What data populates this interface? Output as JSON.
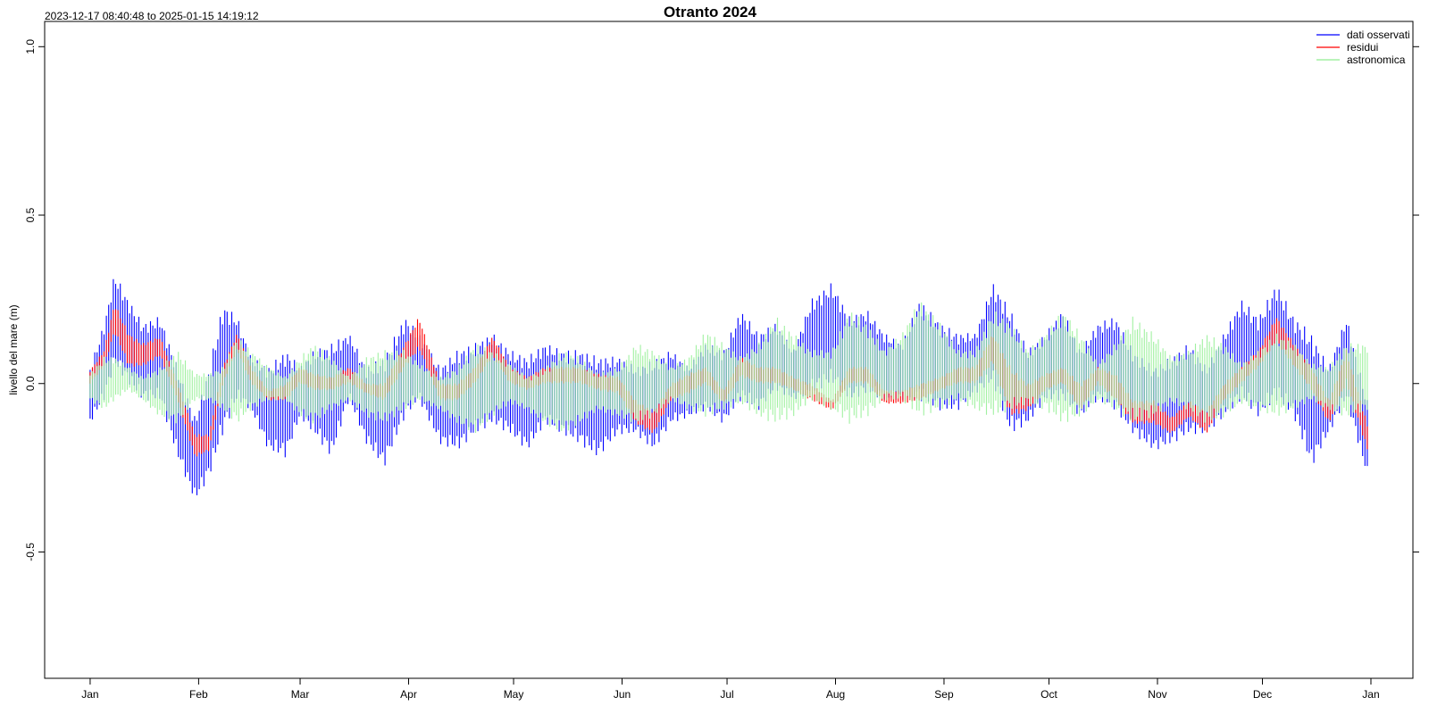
{
  "chart_data": {
    "type": "line",
    "title": "Otranto 2024",
    "subtitle": "2023-12-17 08:40:48 to 2025-01-15 14:19:12",
    "xlabel": "",
    "ylabel": "livello del mare (m)",
    "xlim": [
      "2023-12-19",
      "2025-01-13"
    ],
    "ylim": [
      -0.875,
      1.075
    ],
    "y_ticks": [
      1.0,
      0.5,
      0.0,
      -0.5
    ],
    "y_tick_labels": [
      "1.0",
      "0.5",
      "0.0",
      "-0.5"
    ],
    "x_ticks": [
      "2024-01-01",
      "2024-02-01",
      "2024-03-01",
      "2024-04-01",
      "2024-05-01",
      "2024-06-01",
      "2024-07-01",
      "2024-08-01",
      "2024-09-01",
      "2024-10-01",
      "2024-11-01",
      "2024-12-01",
      "2025-01-01"
    ],
    "x_tick_labels": [
      "Jan",
      "Feb",
      "Mar",
      "Apr",
      "May",
      "Jun",
      "Jul",
      "Aug",
      "Sep",
      "Oct",
      "Nov",
      "Dec",
      "Jan"
    ],
    "legend_position": "top-right",
    "grid": false,
    "series": [
      {
        "name": "dati osservati",
        "color": "#0000ff",
        "style": "band",
        "x": [
          "2024-01-01",
          "2024-01-05",
          "2024-01-08",
          "2024-01-12",
          "2024-01-16",
          "2024-01-21",
          "2024-01-26",
          "2024-01-31",
          "2024-02-04",
          "2024-02-08",
          "2024-02-12",
          "2024-02-16",
          "2024-02-21",
          "2024-02-26",
          "2024-03-01",
          "2024-03-05",
          "2024-03-10",
          "2024-03-15",
          "2024-03-20",
          "2024-03-25",
          "2024-03-31",
          "2024-04-04",
          "2024-04-10",
          "2024-04-15",
          "2024-04-20",
          "2024-04-25",
          "2024-04-30",
          "2024-05-05",
          "2024-05-10",
          "2024-05-15",
          "2024-05-20",
          "2024-05-25",
          "2024-05-31",
          "2024-06-05",
          "2024-06-10",
          "2024-06-15",
          "2024-06-20",
          "2024-06-25",
          "2024-06-30",
          "2024-07-05",
          "2024-07-10",
          "2024-07-15",
          "2024-07-20",
          "2024-07-25",
          "2024-07-31",
          "2024-08-05",
          "2024-08-10",
          "2024-08-15",
          "2024-08-20",
          "2024-08-25",
          "2024-08-31",
          "2024-09-05",
          "2024-09-10",
          "2024-09-15",
          "2024-09-20",
          "2024-09-25",
          "2024-09-30",
          "2024-10-05",
          "2024-10-10",
          "2024-10-15",
          "2024-10-20",
          "2024-10-25",
          "2024-10-31",
          "2024-11-05",
          "2024-11-10",
          "2024-11-15",
          "2024-11-20",
          "2024-11-25",
          "2024-11-30",
          "2024-12-05",
          "2024-12-10",
          "2024-12-15",
          "2024-12-20",
          "2024-12-25",
          "2024-12-31"
        ],
        "y_max": [
          0.05,
          0.18,
          0.33,
          0.25,
          0.18,
          0.2,
          0.05,
          -0.1,
          0.05,
          0.24,
          0.2,
          0.08,
          0.05,
          0.1,
          0.05,
          0.1,
          0.12,
          0.15,
          0.05,
          0.08,
          0.2,
          0.15,
          0.05,
          0.1,
          0.12,
          0.15,
          0.1,
          0.08,
          0.12,
          0.1,
          0.1,
          0.08,
          0.08,
          0.05,
          0.07,
          0.1,
          0.05,
          0.12,
          0.1,
          0.22,
          0.15,
          0.18,
          0.1,
          0.25,
          0.3,
          0.2,
          0.22,
          0.15,
          0.12,
          0.25,
          0.18,
          0.15,
          0.15,
          0.3,
          0.22,
          0.1,
          0.15,
          0.22,
          0.1,
          0.18,
          0.2,
          0.1,
          0.05,
          0.08,
          0.12,
          0.05,
          0.15,
          0.25,
          0.2,
          0.3,
          0.2,
          0.15,
          0.05,
          0.2,
          -0.05
        ],
        "y_min": [
          -0.12,
          -0.05,
          0.05,
          0.0,
          -0.05,
          -0.05,
          -0.22,
          -0.35,
          -0.28,
          -0.15,
          -0.05,
          -0.08,
          -0.2,
          -0.22,
          -0.1,
          -0.15,
          -0.22,
          -0.05,
          -0.18,
          -0.25,
          -0.1,
          -0.05,
          -0.18,
          -0.2,
          -0.15,
          -0.12,
          -0.15,
          -0.2,
          -0.12,
          -0.15,
          -0.18,
          -0.22,
          -0.15,
          -0.15,
          -0.2,
          -0.12,
          -0.1,
          -0.08,
          -0.12,
          -0.05,
          -0.08,
          -0.02,
          -0.05,
          -0.03,
          0.0,
          -0.05,
          -0.03,
          -0.05,
          -0.05,
          -0.05,
          -0.08,
          -0.08,
          -0.03,
          0.0,
          -0.15,
          -0.12,
          -0.05,
          -0.05,
          -0.1,
          -0.05,
          -0.08,
          -0.15,
          -0.2,
          -0.18,
          -0.15,
          -0.15,
          -0.1,
          -0.05,
          -0.1,
          -0.05,
          -0.1,
          -0.25,
          -0.15,
          -0.05,
          -0.28
        ]
      },
      {
        "name": "residui",
        "color": "#ff0000",
        "style": "band",
        "x": [
          "2024-01-01",
          "2024-01-05",
          "2024-01-08",
          "2024-01-12",
          "2024-01-16",
          "2024-01-21",
          "2024-01-26",
          "2024-01-31",
          "2024-02-04",
          "2024-02-08",
          "2024-02-12",
          "2024-02-16",
          "2024-02-21",
          "2024-02-26",
          "2024-03-01",
          "2024-03-05",
          "2024-03-10",
          "2024-03-15",
          "2024-03-20",
          "2024-03-25",
          "2024-03-31",
          "2024-04-04",
          "2024-04-10",
          "2024-04-15",
          "2024-04-20",
          "2024-04-25",
          "2024-04-30",
          "2024-05-05",
          "2024-05-10",
          "2024-05-15",
          "2024-05-20",
          "2024-05-25",
          "2024-05-31",
          "2024-06-05",
          "2024-06-10",
          "2024-06-15",
          "2024-06-20",
          "2024-06-25",
          "2024-06-30",
          "2024-07-05",
          "2024-07-10",
          "2024-07-15",
          "2024-07-20",
          "2024-07-25",
          "2024-07-31",
          "2024-08-05",
          "2024-08-10",
          "2024-08-15",
          "2024-08-20",
          "2024-08-25",
          "2024-08-31",
          "2024-09-05",
          "2024-09-10",
          "2024-09-15",
          "2024-09-20",
          "2024-09-25",
          "2024-09-30",
          "2024-10-05",
          "2024-10-10",
          "2024-10-15",
          "2024-10-20",
          "2024-10-25",
          "2024-10-31",
          "2024-11-05",
          "2024-11-10",
          "2024-11-15",
          "2024-11-20",
          "2024-11-25",
          "2024-11-30",
          "2024-12-05",
          "2024-12-10",
          "2024-12-15",
          "2024-12-20",
          "2024-12-25",
          "2024-12-31"
        ],
        "y_max": [
          0.04,
          0.1,
          0.24,
          0.15,
          0.12,
          0.14,
          0.0,
          -0.15,
          -0.15,
          0.05,
          0.15,
          0.05,
          -0.02,
          0.0,
          0.05,
          0.03,
          0.02,
          0.05,
          0.0,
          0.0,
          0.12,
          0.2,
          0.0,
          0.0,
          0.05,
          0.14,
          0.05,
          0.02,
          0.05,
          0.05,
          0.05,
          0.03,
          0.02,
          -0.05,
          -0.08,
          0.0,
          0.03,
          0.05,
          -0.02,
          0.08,
          0.05,
          0.05,
          0.02,
          0.0,
          -0.05,
          0.05,
          0.05,
          -0.02,
          -0.02,
          0.0,
          0.02,
          0.05,
          0.05,
          0.15,
          0.05,
          0.0,
          0.03,
          0.05,
          0.0,
          0.05,
          0.03,
          -0.05,
          -0.05,
          -0.1,
          -0.05,
          -0.08,
          0.0,
          0.05,
          0.1,
          0.2,
          0.12,
          0.05,
          -0.05,
          0.1,
          -0.12
        ],
        "y_min": [
          0.0,
          0.05,
          0.15,
          0.05,
          0.05,
          0.08,
          -0.05,
          -0.22,
          -0.2,
          0.0,
          0.1,
          0.0,
          -0.05,
          -0.05,
          0.0,
          -0.02,
          -0.02,
          0.0,
          -0.03,
          -0.05,
          0.05,
          0.1,
          -0.05,
          -0.05,
          0.0,
          0.08,
          0.0,
          -0.02,
          0.0,
          0.0,
          0.0,
          -0.02,
          -0.03,
          -0.12,
          -0.15,
          -0.05,
          -0.03,
          0.0,
          -0.06,
          0.02,
          0.0,
          0.0,
          -0.02,
          -0.05,
          -0.08,
          0.0,
          0.0,
          -0.06,
          -0.06,
          -0.05,
          -0.02,
          0.0,
          0.0,
          0.06,
          -0.1,
          -0.08,
          -0.02,
          0.0,
          -0.08,
          0.0,
          -0.05,
          -0.12,
          -0.12,
          -0.15,
          -0.1,
          -0.15,
          -0.05,
          0.0,
          0.05,
          0.12,
          0.05,
          -0.02,
          -0.12,
          0.0,
          -0.2
        ]
      },
      {
        "name": "astronomica",
        "color": "#90ee90",
        "style": "band",
        "x": [
          "2024-01-01",
          "2024-01-05",
          "2024-01-08",
          "2024-01-12",
          "2024-01-16",
          "2024-01-21",
          "2024-01-26",
          "2024-01-31",
          "2024-02-04",
          "2024-02-08",
          "2024-02-12",
          "2024-02-16",
          "2024-02-21",
          "2024-02-26",
          "2024-03-01",
          "2024-03-05",
          "2024-03-10",
          "2024-03-15",
          "2024-03-20",
          "2024-03-25",
          "2024-03-31",
          "2024-04-04",
          "2024-04-10",
          "2024-04-15",
          "2024-04-20",
          "2024-04-25",
          "2024-04-30",
          "2024-05-05",
          "2024-05-10",
          "2024-05-15",
          "2024-05-20",
          "2024-05-25",
          "2024-05-31",
          "2024-06-05",
          "2024-06-10",
          "2024-06-15",
          "2024-06-20",
          "2024-06-25",
          "2024-06-30",
          "2024-07-05",
          "2024-07-10",
          "2024-07-15",
          "2024-07-20",
          "2024-07-25",
          "2024-07-31",
          "2024-08-05",
          "2024-08-10",
          "2024-08-15",
          "2024-08-20",
          "2024-08-25",
          "2024-08-31",
          "2024-09-05",
          "2024-09-10",
          "2024-09-15",
          "2024-09-20",
          "2024-09-25",
          "2024-09-30",
          "2024-10-05",
          "2024-10-10",
          "2024-10-15",
          "2024-10-20",
          "2024-10-25",
          "2024-10-31",
          "2024-11-05",
          "2024-11-10",
          "2024-11-15",
          "2024-11-20",
          "2024-11-25",
          "2024-11-30",
          "2024-12-05",
          "2024-12-10",
          "2024-12-15",
          "2024-12-20",
          "2024-12-25",
          "2024-12-31"
        ],
        "y_max": [
          0.03,
          0.08,
          0.08,
          0.05,
          0.02,
          0.05,
          0.1,
          0.03,
          0.03,
          0.05,
          0.14,
          0.1,
          0.05,
          0.02,
          0.08,
          0.12,
          0.08,
          0.02,
          0.08,
          0.1,
          0.1,
          0.06,
          0.02,
          0.05,
          0.12,
          0.1,
          0.06,
          0.02,
          0.05,
          0.1,
          0.08,
          0.03,
          0.05,
          0.12,
          0.1,
          0.05,
          0.08,
          0.16,
          0.12,
          0.08,
          0.12,
          0.2,
          0.15,
          0.1,
          0.1,
          0.22,
          0.18,
          0.1,
          0.15,
          0.25,
          0.18,
          0.1,
          0.1,
          0.22,
          0.18,
          0.1,
          0.15,
          0.22,
          0.15,
          0.06,
          0.12,
          0.2,
          0.15,
          0.08,
          0.1,
          0.15,
          0.12,
          0.06,
          0.1,
          0.15,
          0.12,
          0.06,
          0.05,
          0.12,
          0.12
        ],
        "y_min": [
          -0.05,
          -0.08,
          -0.05,
          -0.02,
          -0.05,
          -0.1,
          -0.12,
          -0.05,
          -0.05,
          -0.08,
          -0.12,
          -0.08,
          -0.05,
          -0.05,
          -0.1,
          -0.12,
          -0.08,
          -0.05,
          -0.1,
          -0.12,
          -0.08,
          -0.05,
          -0.08,
          -0.12,
          -0.15,
          -0.1,
          -0.06,
          -0.08,
          -0.12,
          -0.15,
          -0.12,
          -0.08,
          -0.1,
          -0.12,
          -0.1,
          -0.05,
          -0.08,
          -0.1,
          -0.08,
          -0.06,
          -0.1,
          -0.12,
          -0.1,
          -0.05,
          -0.08,
          -0.12,
          -0.1,
          -0.05,
          -0.05,
          -0.1,
          -0.08,
          -0.05,
          -0.08,
          -0.1,
          -0.08,
          -0.06,
          -0.08,
          -0.12,
          -0.1,
          -0.05,
          -0.08,
          -0.12,
          -0.1,
          -0.06,
          -0.08,
          -0.12,
          -0.1,
          -0.06,
          -0.08,
          -0.1,
          -0.08,
          -0.05,
          -0.08,
          -0.1,
          -0.08
        ]
      }
    ]
  }
}
